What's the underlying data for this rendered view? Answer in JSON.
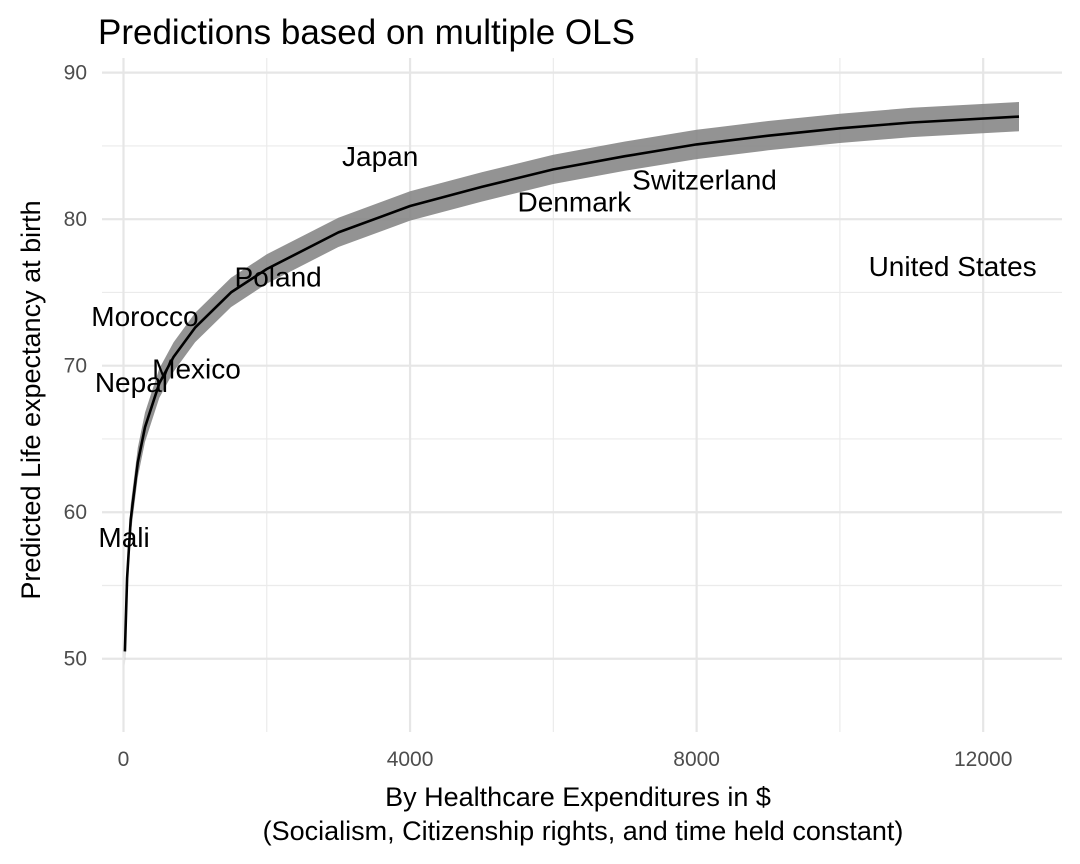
{
  "chart_data": {
    "type": "line",
    "title": "Predictions based on multiple OLS",
    "xlabel_line1": "By Healthcare Expenditures in $",
    "xlabel_line2": "(Socialism, Citizenship rights, and time held constant)",
    "ylabel": "Predicted Life expectancy at birth",
    "xlim": [
      -300,
      13100
    ],
    "ylim": [
      45,
      91
    ],
    "x_ticks": [
      0,
      4000,
      8000,
      12000
    ],
    "x_tick_labels": [
      "0",
      "4000",
      "8000",
      "12000"
    ],
    "y_ticks": [
      50,
      60,
      70,
      80,
      90
    ],
    "y_tick_labels": [
      "50",
      "60",
      "70",
      "80",
      "90"
    ],
    "x_minor_ticks": [
      2000,
      6000,
      10000
    ],
    "y_minor_ticks": [
      55,
      65,
      75,
      85
    ],
    "grid": true,
    "series": [
      {
        "x": [
          20,
          50,
          100,
          200,
          300,
          500,
          700,
          1000,
          1500,
          2000,
          3000,
          4000,
          5000,
          6000,
          7000,
          8000,
          9000,
          10000,
          11000,
          12500
        ],
        "y": [
          50.5,
          55.5,
          59.5,
          63.4,
          65.8,
          68.8,
          70.6,
          72.6,
          75.0,
          76.6,
          79.1,
          80.9,
          82.2,
          83.4,
          84.3,
          85.1,
          85.7,
          86.2,
          86.6,
          87.0
        ],
        "ci_width": 2.0,
        "line_color": "#000000",
        "ribbon_color": "#808080"
      }
    ],
    "labels": [
      {
        "text": "Japan",
        "x": 3050,
        "y": 84.3
      },
      {
        "text": "Denmark",
        "x": 5500,
        "y": 81.2
      },
      {
        "text": "Switzerland",
        "x": 7100,
        "y": 82.7
      },
      {
        "text": "United States",
        "x": 10400,
        "y": 76.8
      },
      {
        "text": "Poland",
        "x": 1550,
        "y": 76.1
      },
      {
        "text": "Morocco",
        "x": -450,
        "y": 73.4
      },
      {
        "text": "Mexico",
        "x": 400,
        "y": 69.8
      },
      {
        "text": "Nepal",
        "x": -400,
        "y": 68.9
      },
      {
        "text": "Mali",
        "x": -350,
        "y": 58.3
      }
    ]
  }
}
